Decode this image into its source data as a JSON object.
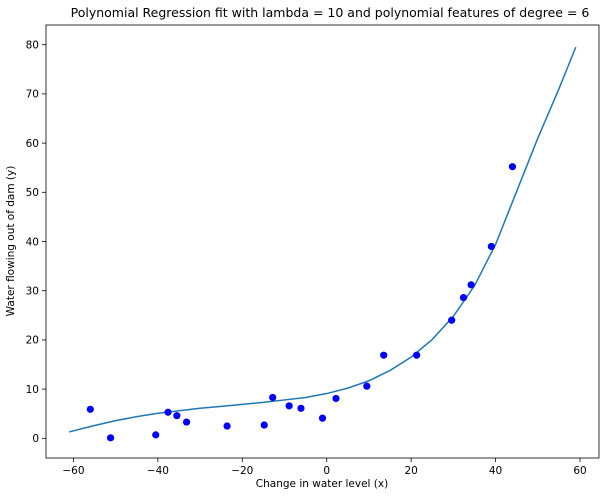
{
  "chart_data": {
    "type": "scatter",
    "title": "Polynomial Regression fit with lambda = 10 and polynomial features of degree = 6",
    "xlabel": "Change in water level (x)",
    "ylabel": "Water flowing out of dam (y)",
    "xlim": [
      -66.5,
      64.5
    ],
    "ylim": [
      -4,
      84
    ],
    "xticks": [
      -60,
      -40,
      -20,
      0,
      20,
      40,
      60
    ],
    "yticks": [
      0,
      10,
      20,
      30,
      40,
      50,
      60,
      70,
      80
    ],
    "xtick_labels": [
      "−60",
      "−40",
      "−20",
      "0",
      "20",
      "40",
      "60"
    ],
    "ytick_labels": [
      "0",
      "10",
      "20",
      "30",
      "40",
      "50",
      "60",
      "70",
      "80"
    ],
    "grid": false,
    "legend": false,
    "colors": {
      "points": "#0000ff",
      "fit_line": "#1f77b4"
    },
    "series": [
      {
        "kind": "scatter",
        "points": [
          [
            -56.0,
            5.9
          ],
          [
            -51.2,
            0.1
          ],
          [
            -40.5,
            0.7
          ],
          [
            -37.6,
            5.3
          ],
          [
            -35.5,
            4.6
          ],
          [
            -33.2,
            3.3
          ],
          [
            -23.6,
            2.5
          ],
          [
            -14.8,
            2.7
          ],
          [
            -12.8,
            8.3
          ],
          [
            -8.9,
            6.6
          ],
          [
            -6.1,
            6.1
          ],
          [
            -1.0,
            4.1
          ],
          [
            2.2,
            8.1
          ],
          [
            9.5,
            10.6
          ],
          [
            13.5,
            16.9
          ],
          [
            21.3,
            16.9
          ],
          [
            29.6,
            24.0
          ],
          [
            32.4,
            28.6
          ],
          [
            34.2,
            31.2
          ],
          [
            39.0,
            39.0
          ],
          [
            44.0,
            55.2
          ]
        ]
      },
      {
        "kind": "line",
        "points": [
          [
            -61,
            1.3
          ],
          [
            -55,
            2.6
          ],
          [
            -50,
            3.6
          ],
          [
            -45,
            4.4
          ],
          [
            -40,
            5.1
          ],
          [
            -35,
            5.6
          ],
          [
            -30,
            6.1
          ],
          [
            -25,
            6.5
          ],
          [
            -20,
            6.9
          ],
          [
            -15,
            7.3
          ],
          [
            -10,
            7.8
          ],
          [
            -5,
            8.3
          ],
          [
            0,
            9.1
          ],
          [
            5,
            10.2
          ],
          [
            10,
            11.7
          ],
          [
            15,
            13.8
          ],
          [
            20,
            16.5
          ],
          [
            25,
            20.1
          ],
          [
            30,
            24.8
          ],
          [
            35,
            31.0
          ],
          [
            40,
            39.4
          ],
          [
            45,
            50.2
          ],
          [
            50,
            61.0
          ],
          [
            55,
            71.0
          ],
          [
            59,
            79.5
          ]
        ]
      }
    ]
  }
}
